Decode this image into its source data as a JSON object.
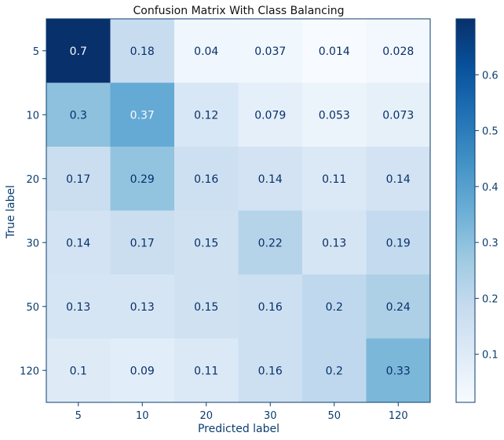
{
  "chart_data": {
    "type": "heatmap",
    "title": "Confusion Matrix With Class Balancing",
    "xlabel": "Predicted label",
    "ylabel": "True label",
    "x_categories": [
      "5",
      "10",
      "20",
      "30",
      "50",
      "120"
    ],
    "y_categories": [
      "5",
      "10",
      "20",
      "30",
      "50",
      "120"
    ],
    "values": [
      [
        0.7,
        0.18,
        0.04,
        0.037,
        0.014,
        0.028
      ],
      [
        0.3,
        0.37,
        0.12,
        0.079,
        0.053,
        0.073
      ],
      [
        0.17,
        0.29,
        0.16,
        0.14,
        0.11,
        0.14
      ],
      [
        0.14,
        0.17,
        0.15,
        0.22,
        0.13,
        0.19
      ],
      [
        0.13,
        0.13,
        0.15,
        0.16,
        0.2,
        0.24
      ],
      [
        0.1,
        0.09,
        0.11,
        0.16,
        0.2,
        0.33
      ]
    ],
    "labels": [
      [
        "0.7",
        "0.18",
        "0.04",
        "0.037",
        "0.014",
        "0.028"
      ],
      [
        "0.3",
        "0.37",
        "0.12",
        "0.079",
        "0.053",
        "0.073"
      ],
      [
        "0.17",
        "0.29",
        "0.16",
        "0.14",
        "0.11",
        "0.14"
      ],
      [
        "0.14",
        "0.17",
        "0.15",
        "0.22",
        "0.13",
        "0.19"
      ],
      [
        "0.13",
        "0.13",
        "0.15",
        "0.16",
        "0.2",
        "0.24"
      ],
      [
        "0.1",
        "0.09",
        "0.11",
        "0.16",
        "0.2",
        "0.33"
      ]
    ],
    "colormap": "Blues",
    "color_range": [
      0.014,
      0.7
    ],
    "colorbar_ticks": [
      {
        "value": 0.1,
        "label": "0.1"
      },
      {
        "value": 0.2,
        "label": "0.2"
      },
      {
        "value": 0.3,
        "label": "0.3"
      },
      {
        "value": 0.4,
        "label": "0.4"
      },
      {
        "value": 0.5,
        "label": "0.5"
      },
      {
        "value": 0.6,
        "label": "0.6"
      }
    ],
    "text_color_dark": "#08306b",
    "text_color_light": "#f7fbff",
    "axis_color": "#0b3d6e",
    "grid": false
  }
}
